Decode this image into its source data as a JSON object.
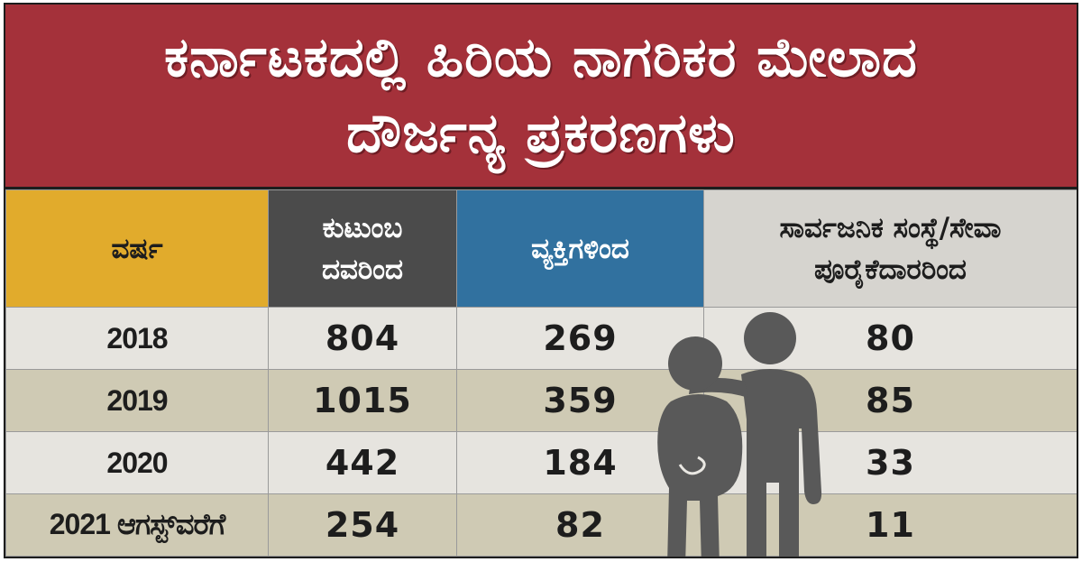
{
  "title": {
    "line1": "ಕರ್ನಾಟಕದಲ್ಲಿ ಹಿರಿಯ ನಾಗರಿಕರ ಮೇಲಾದ",
    "line2": "ದೌರ್ಜನ್ಯ ಪ್ರಕರಣಗಳು"
  },
  "table": {
    "headers": {
      "year": "ವರ್ಷ",
      "family_line1": "ಕುಟುಂಬ",
      "family_line2": "ದವರಿಂದ",
      "persons": "ವ್ಯಕ್ತಿಗಳಿಂದ",
      "public_line1": "ಸಾರ್ವಜನಿಕ ಸಂಸ್ಥೆ/ಸೇವಾ",
      "public_line2": "ಪೂರೈಕೆದಾರರಿಂದ"
    },
    "rows": [
      {
        "year": "2018",
        "family": "804",
        "persons": "269",
        "public": "80"
      },
      {
        "year": "2019",
        "family": "1015",
        "persons": "359",
        "public": "85"
      },
      {
        "year": "2020",
        "family": "442",
        "persons": "184",
        "public": "33"
      },
      {
        "year": "2021 ಆಗಸ್ಟ್‌ವರೆಗೆ",
        "family": "254",
        "persons": "82",
        "public": "11"
      }
    ]
  },
  "chart_data": {
    "type": "table",
    "title": "ಕರ್ನಾಟಕದಲ್ಲಿ ಹಿರಿಯ ನಾಗರಿಕರ ಮೇಲಾದ ದೌರ್ಜನ್ಯ ಪ್ರಕರಣಗಳು",
    "categories": [
      "2018",
      "2019",
      "2020",
      "2021 ಆಗಸ್ಟ್‌ವರೆಗೆ"
    ],
    "series": [
      {
        "name": "ಕುಟುಂಬ ದವರಿಂದ",
        "values": [
          804,
          1015,
          442,
          254
        ]
      },
      {
        "name": "ವ್ಯಕ್ತಿಗಳಿಂದ",
        "values": [
          269,
          359,
          184,
          82
        ]
      },
      {
        "name": "ಸಾರ್ವಜನಿಕ ಸಂಸ್ಥೆ/ಸೇವಾ ಪೂರೈಕೆದಾರರಿಂದ",
        "values": [
          80,
          85,
          33,
          11
        ]
      }
    ]
  },
  "colors": {
    "title_bg": "#a4313a",
    "year_header": "#e1ab2c",
    "family_header": "#4b4b4b",
    "persons_header": "#31719f",
    "public_header": "#d6d4cf",
    "row_light": "#e6e4df",
    "row_dark": "#cfcab4",
    "figure": "#595959"
  },
  "illustration": {
    "icon": "elderly-people-silhouette-icon"
  }
}
